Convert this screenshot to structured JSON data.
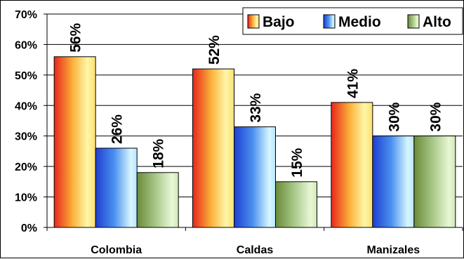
{
  "chart_data": {
    "type": "bar",
    "categories": [
      "Colombia",
      "Caldas",
      "Manizales"
    ],
    "series": [
      {
        "name": "Bajo",
        "values": [
          56,
          52,
          41
        ],
        "labels": [
          "56%",
          "52%",
          "41%"
        ],
        "color": "#f5a623"
      },
      {
        "name": "Medio",
        "values": [
          26,
          33,
          30
        ],
        "labels": [
          "26%",
          "33%",
          "30%"
        ],
        "color": "#2f6fe8"
      },
      {
        "name": "Alto",
        "values": [
          18,
          15,
          30
        ],
        "labels": [
          "18%",
          "15%",
          "30%"
        ],
        "color": "#9cc07a"
      }
    ],
    "ylim": [
      0,
      70
    ],
    "yticks": [
      "0%",
      "10%",
      "20%",
      "30%",
      "40%",
      "50%",
      "60%",
      "70%"
    ],
    "grid": true,
    "legend_position": "top-right"
  }
}
